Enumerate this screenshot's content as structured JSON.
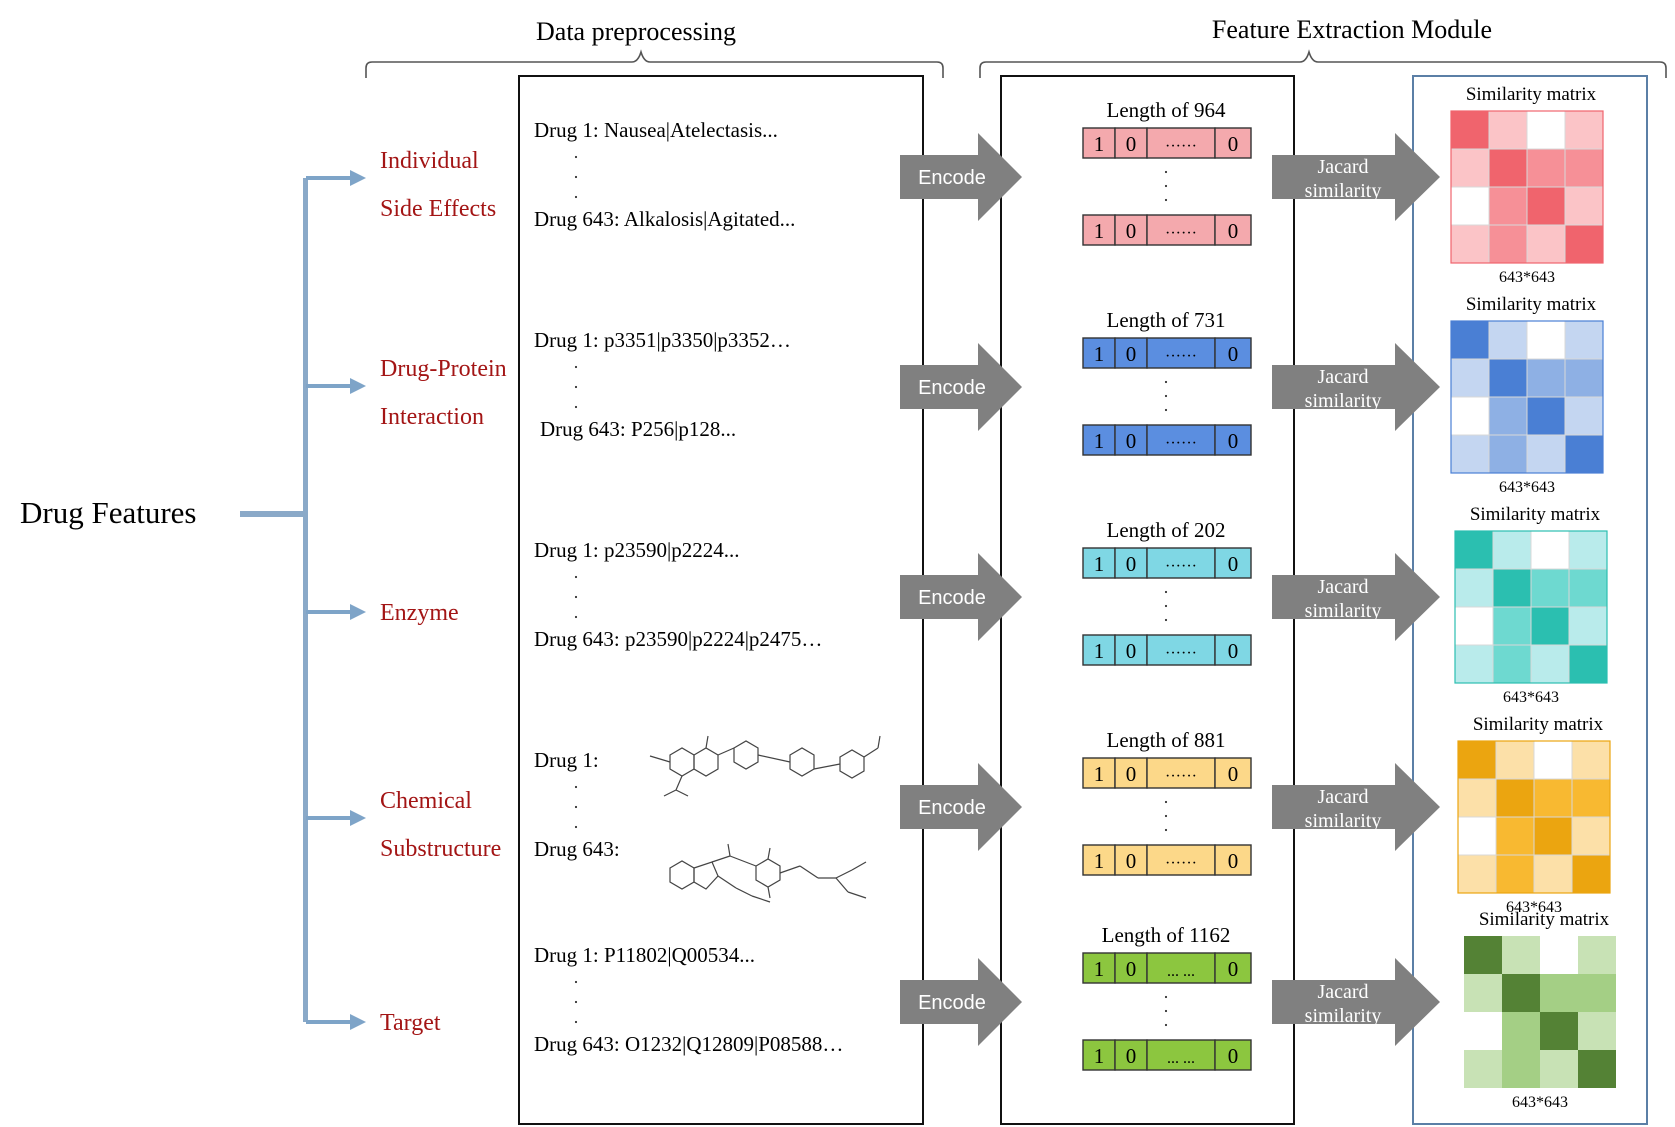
{
  "headers": {
    "preprocessing": "Data preprocessing",
    "extraction": "Feature Extraction Module"
  },
  "root": {
    "label": "Drug Features"
  },
  "dots": ". . .",
  "dots_arrow": "......",
  "encode_label": "Encode",
  "jacard_label": [
    "Jacard",
    "similarity"
  ],
  "matrix_title": "Similarity matrix",
  "matrix_size": "643*643",
  "colors": {
    "branch_text": "#a31515",
    "connector": "#7ea4c8",
    "arrow": "#808080",
    "panel_border": "#5b7fa6"
  },
  "features": [
    {
      "name_lines": [
        "Individual",
        "Side Effects"
      ],
      "first": "Drug 1: Nausea|Atelectasis...",
      "last": "Drug 643: Alkalosis|Agitated...",
      "length_label": "Length of 964",
      "vector": [
        "1",
        "0",
        "······",
        "0"
      ],
      "colors": {
        "vector": "#f4a9ad",
        "levels": [
          "#ffffff",
          "#fbc4c7",
          "#f69097",
          "#f0646d"
        ]
      },
      "matrix": [
        [
          3,
          1,
          0,
          1
        ],
        [
          1,
          3,
          2,
          2
        ],
        [
          0,
          2,
          3,
          1
        ],
        [
          1,
          2,
          1,
          3
        ]
      ]
    },
    {
      "name_lines": [
        "Drug-Protein",
        "Interaction"
      ],
      "first": "Drug 1: p3351|p3350|p3352…",
      "last": "Drug 643: P256|p128...",
      "length_label": "Length of 731",
      "vector": [
        "1",
        "0",
        "······",
        "0"
      ],
      "colors": {
        "vector": "#5b8ee0",
        "levels": [
          "#ffffff",
          "#c4d6f1",
          "#8eb0e4",
          "#4a7fd4"
        ]
      },
      "matrix": [
        [
          3,
          1,
          0,
          1
        ],
        [
          1,
          3,
          2,
          2
        ],
        [
          0,
          2,
          3,
          1
        ],
        [
          1,
          2,
          1,
          3
        ]
      ]
    },
    {
      "name_lines": [
        "Enzyme"
      ],
      "first": "Drug 1: p23590|p2224...",
      "last": "Drug 643: p23590|p2224|p2475…",
      "length_label": "Length of 202",
      "vector": [
        "1",
        "0",
        "······",
        "0"
      ],
      "colors": {
        "vector": "#7fd7e4",
        "levels": [
          "#ffffff",
          "#b9ebeb",
          "#6ed9d0",
          "#2bbfb0"
        ]
      },
      "matrix": [
        [
          3,
          1,
          0,
          1
        ],
        [
          1,
          3,
          2,
          2
        ],
        [
          0,
          2,
          3,
          1
        ],
        [
          1,
          2,
          1,
          3
        ]
      ]
    },
    {
      "name_lines": [
        "Chemical",
        "Substructure"
      ],
      "first": "Drug 1:",
      "last": "Drug 643:",
      "length_label": "Length of 881",
      "vector": [
        "1",
        "0",
        "······",
        "0"
      ],
      "colors": {
        "vector": "#fcd889",
        "levels": [
          "#ffffff",
          "#fce0a8",
          "#f8b931",
          "#eba510"
        ]
      },
      "matrix": [
        [
          3,
          1,
          0,
          1
        ],
        [
          1,
          3,
          2,
          2
        ],
        [
          0,
          2,
          3,
          1
        ],
        [
          1,
          2,
          1,
          3
        ]
      ]
    },
    {
      "name_lines": [
        "Target"
      ],
      "first": "Drug 1: P11802|Q00534...",
      "last": "Drug 643: O1232|Q12809|P08588…",
      "length_label": "Length of 1162",
      "vector": [
        "1",
        "0",
        "... ...",
        "0"
      ],
      "colors": {
        "vector": "#8cc63f",
        "levels": [
          "#ffffff",
          "#c8e2b5",
          "#a4cf85",
          "#548235"
        ]
      },
      "matrix": [
        [
          3,
          1,
          0,
          1
        ],
        [
          1,
          3,
          2,
          2
        ],
        [
          0,
          2,
          3,
          1
        ],
        [
          1,
          2,
          1,
          3
        ]
      ]
    }
  ]
}
